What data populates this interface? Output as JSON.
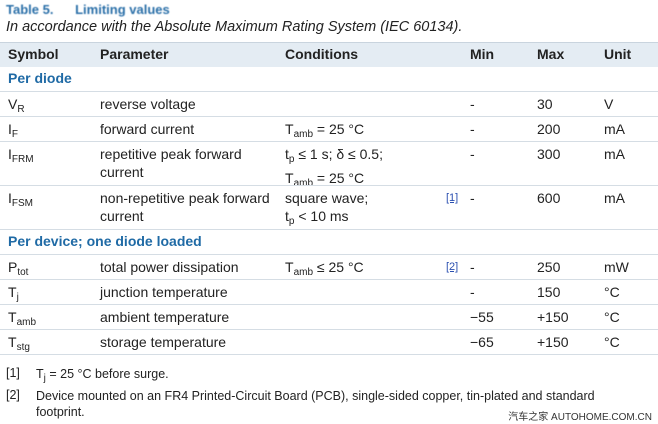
{
  "header": {
    "title": "Table 5.      Limiting values",
    "subtitle": "In accordance with the Absolute Maximum Rating System (IEC 60134)."
  },
  "table": {
    "columns": [
      "Symbol",
      "Parameter",
      "Conditions",
      "Min",
      "Max",
      "Unit"
    ],
    "rows": [
      {
        "section": "Per diode"
      },
      {
        "symbol": [
          [
            "V",
            {
              "sub": "R"
            }
          ]
        ],
        "parameter": "reverse voltage",
        "min": "-",
        "max": "30",
        "unit": "V"
      },
      {
        "symbol": [
          [
            "I",
            {
              "sub": "F"
            }
          ]
        ],
        "parameter": "forward current",
        "conditions": [
          [
            "T",
            {
              "sub": "amb"
            },
            " = 25 °C"
          ]
        ],
        "min": "-",
        "max": "200",
        "unit": "mA"
      },
      {
        "symbol": [
          [
            "I",
            {
              "sub": "FRM"
            }
          ]
        ],
        "parameter": "repetitive peak forward current",
        "conditions": [
          [
            "t",
            {
              "sub": "p"
            },
            " ≤ 1 s; δ ≤ 0.5;"
          ],
          [
            "T",
            {
              "sub": "amb"
            },
            " = 25 °C"
          ]
        ],
        "min": "-",
        "max": "300",
        "unit": "mA"
      },
      {
        "symbol": [
          [
            "I",
            {
              "sub": "FSM"
            }
          ]
        ],
        "parameter": "non-repetitive peak forward current",
        "conditions": [
          [
            "square wave;"
          ],
          [
            "t",
            {
              "sub": "p"
            },
            " < 10 ms"
          ]
        ],
        "note": "[1]",
        "min": "-",
        "max": "600",
        "unit": "mA"
      },
      {
        "section": "Per device; one diode loaded"
      },
      {
        "symbol": [
          [
            "P",
            {
              "sub": "tot"
            }
          ]
        ],
        "parameter": "total power dissipation",
        "conditions": [
          [
            "T",
            {
              "sub": "amb"
            },
            " ≤ 25 °C"
          ]
        ],
        "note": "[2]",
        "min": "-",
        "max": "250",
        "unit": "mW"
      },
      {
        "symbol": [
          [
            "T",
            {
              "sub": "j"
            }
          ]
        ],
        "parameter": "junction temperature",
        "min": "-",
        "max": "150",
        "unit": "°C"
      },
      {
        "symbol": [
          [
            "T",
            {
              "sub": "amb"
            }
          ]
        ],
        "parameter": "ambient temperature",
        "min": "−55",
        "max": "+150",
        "unit": "°C"
      },
      {
        "symbol": [
          [
            "T",
            {
              "sub": "stg"
            }
          ]
        ],
        "parameter": "storage temperature",
        "min": "−65",
        "max": "+150",
        "unit": "°C"
      }
    ]
  },
  "footnotes": [
    {
      "label": "[1]",
      "text": [
        [
          "T",
          {
            "sub": "j"
          },
          " = 25 °C before surge."
        ]
      ]
    },
    {
      "label": "[2]",
      "text": "Device mounted on an FR4 Printed-Circuit Board (PCB), single-sided copper, tin-plated and standard footprint."
    }
  ],
  "watermark": "汽车之家  AUTOHOME.COM.CN"
}
